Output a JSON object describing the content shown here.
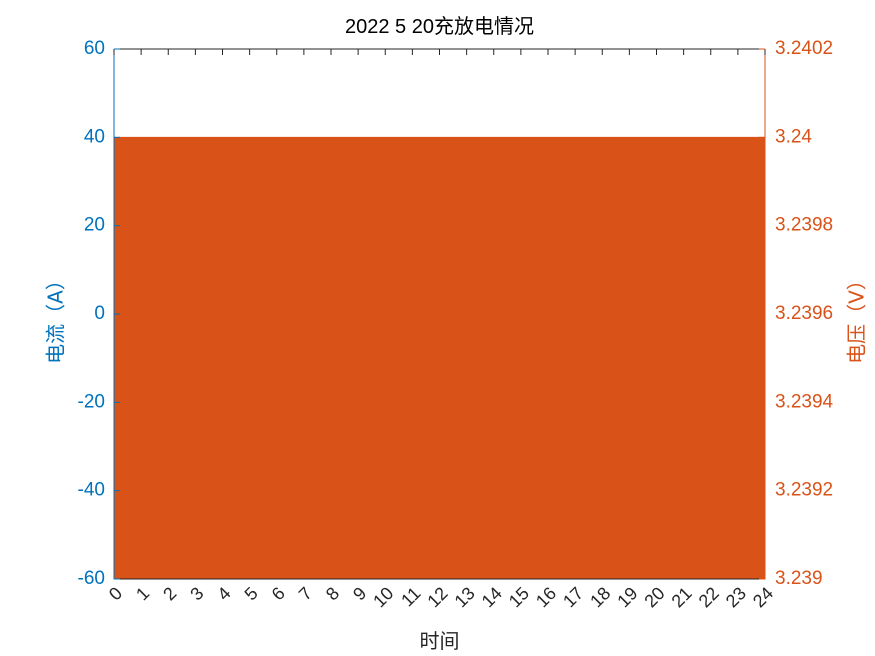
{
  "chart_data": {
    "type": "area",
    "title": "2022   5  20充放电情况",
    "xlabel": "时间",
    "ylabel_left": "电流（A）",
    "ylabel_right": "电压（V）",
    "x_ticks": [
      "0",
      "1",
      "2",
      "3",
      "4",
      "5",
      "6",
      "7",
      "8",
      "9",
      "10",
      "11",
      "12",
      "13",
      "14",
      "15",
      "16",
      "17",
      "18",
      "19",
      "20",
      "21",
      "22",
      "23",
      "24"
    ],
    "xlim": [
      0,
      24
    ],
    "ylim_left": [
      -60,
      60
    ],
    "y_ticks_left": [
      "60",
      "40",
      "20",
      "0",
      "-20",
      "-40",
      "-60"
    ],
    "ylim_right": [
      3.239,
      3.2402
    ],
    "y_ticks_right": [
      "3.2402",
      "3.24",
      "3.2398",
      "3.2396",
      "3.2394",
      "3.2392",
      "3.239"
    ],
    "grid": false,
    "series": [
      {
        "axis": "right",
        "x": [
          0,
          24
        ],
        "values": [
          3.24,
          3.24
        ]
      }
    ],
    "colors": {
      "left_axis": "#0072BD",
      "right_axis": "#D95319",
      "series": "#D95319",
      "x_axis": "#262626"
    }
  }
}
